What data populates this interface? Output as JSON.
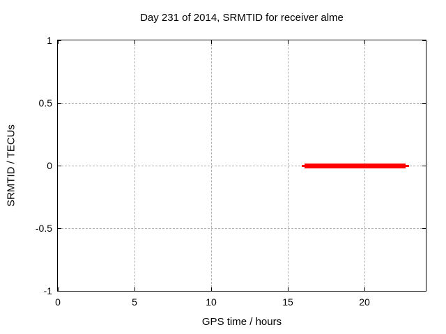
{
  "chart_data": {
    "type": "line",
    "title": "Day 231 of 2014, SRMTID for receiver alme",
    "xlabel": "GPS time / hours",
    "ylabel": "SRMTID / TECUs",
    "xlim": [
      0,
      24
    ],
    "ylim": [
      -1,
      1
    ],
    "xticks": [
      {
        "value": 0,
        "label": "0"
      },
      {
        "value": 5,
        "label": "5"
      },
      {
        "value": 10,
        "label": "10"
      },
      {
        "value": 15,
        "label": "15"
      },
      {
        "value": 20,
        "label": "20"
      }
    ],
    "yticks": [
      {
        "value": -1,
        "label": "-1"
      },
      {
        "value": -0.5,
        "label": "-0.5"
      },
      {
        "value": 0,
        "label": "0"
      },
      {
        "value": 0.5,
        "label": "0.5"
      },
      {
        "value": 1,
        "label": "1"
      }
    ],
    "grid": true,
    "grid_style": "dashed",
    "legend": "none",
    "series": [
      {
        "name": "SRMTID",
        "color": "#ff0000",
        "description": "thick horizontal line segment at constant value 0",
        "segments": [
          {
            "y": 0,
            "x_start": 15.9,
            "x_end": 22.9,
            "core_x_start": 16.1,
            "core_x_end": 22.7
          }
        ]
      }
    ],
    "colors": {
      "grid": "#b0b0b0",
      "axis": "#000000",
      "text": "#000000",
      "background": "#ffffff",
      "line": "#ff0000"
    }
  }
}
